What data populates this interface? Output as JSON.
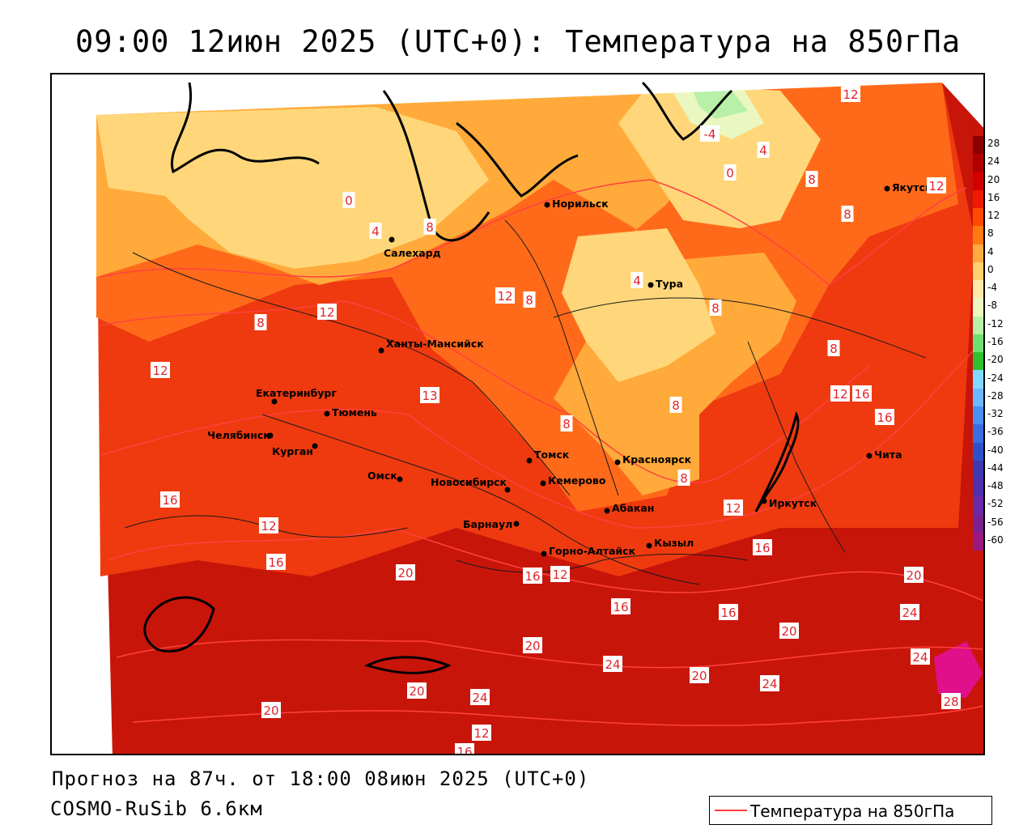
{
  "header": {
    "title": "09:00 12июн 2025 (UTC+0): Температура на 850гПа"
  },
  "footer": {
    "forecast": "Прогноз на 87ч. от 18:00 08июн 2025 (UTC+0)",
    "model": "COSMO-RuSib 6.6км"
  },
  "legend": {
    "line_label": "Температура на 850гПа",
    "line_color": "#ff3b3b"
  },
  "colorbar": {
    "labels": [
      "28",
      "24",
      "20",
      "16",
      "12",
      "8",
      "4",
      "0",
      "-4",
      "-8",
      "-12",
      "-16",
      "-20",
      "-24",
      "-28",
      "-32",
      "-36",
      "-40",
      "-44",
      "-48",
      "-52",
      "-56",
      "-60"
    ],
    "colors": [
      "#8b0000",
      "#b00000",
      "#d40000",
      "#ee1a00",
      "#ff4a00",
      "#ff7a10",
      "#ffaa40",
      "#ffd070",
      "#ffe9a8",
      "#eaf7c0",
      "#b8f0a8",
      "#70e070",
      "#30c030",
      "#80d8ff",
      "#6ab8ff",
      "#4a90f0",
      "#3a6ee0",
      "#3050c8",
      "#4038b0",
      "#5030a8",
      "#6a2aa8",
      "#7a2090",
      "#9a1880"
    ]
  },
  "cities": [
    {
      "name": "Норильск"
    },
    {
      "name": "Якутск"
    },
    {
      "name": "Салехард"
    },
    {
      "name": "Тура"
    },
    {
      "name": "Ханты-Мансийск"
    },
    {
      "name": "Екатеринбург"
    },
    {
      "name": "Тюмень"
    },
    {
      "name": "Челябинск"
    },
    {
      "name": "Курган"
    },
    {
      "name": "Омск"
    },
    {
      "name": "Новосибирск"
    },
    {
      "name": "Томск"
    },
    {
      "name": "Кемерово"
    },
    {
      "name": "Красноярск"
    },
    {
      "name": "Абакан"
    },
    {
      "name": "Барнаул"
    },
    {
      "name": "Горно-Алтайск"
    },
    {
      "name": "Кызыл"
    },
    {
      "name": "Иркутск"
    },
    {
      "name": "Чита"
    }
  ],
  "isotherm_labels": [
    "12",
    "-4",
    "4",
    "0",
    "8",
    "12",
    "8",
    "0",
    "4",
    "8",
    "4",
    "12",
    "8",
    "8",
    "12",
    "8",
    "12",
    "13",
    "8",
    "8",
    "8",
    "12",
    "16",
    "16",
    "12",
    "16",
    "8",
    "12",
    "16",
    "16",
    "20",
    "16",
    "12",
    "16",
    "20",
    "16",
    "20",
    "24",
    "20",
    "20",
    "24",
    "24",
    "24",
    "20",
    "24",
    "28",
    "20",
    "12",
    "16"
  ]
}
